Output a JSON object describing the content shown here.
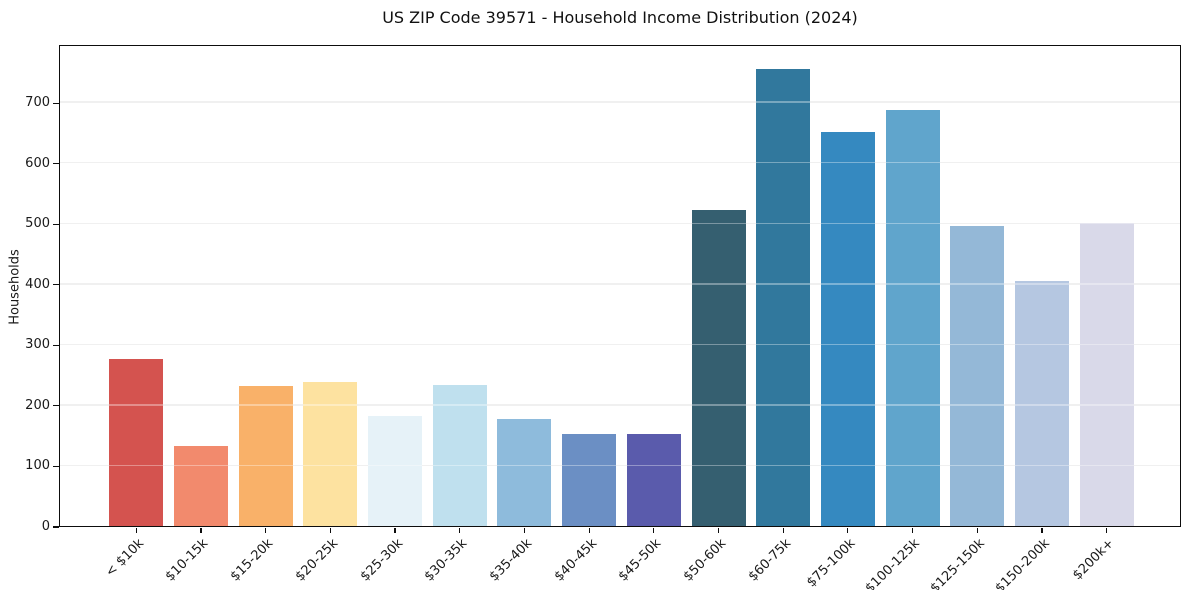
{
  "figure": {
    "title": "US ZIP Code 39571 - Household Income Distribution (2024)"
  },
  "chart_data": {
    "type": "bar",
    "title": "US ZIP Code 39571 - Household Income Distribution (2024)",
    "xlabel": "",
    "ylabel": "Households",
    "ylim": [
      0,
      796
    ],
    "yticks": [
      0,
      100,
      200,
      300,
      400,
      500,
      600,
      700
    ],
    "grid": "horizontal-only",
    "gridline_color": "#e8e8e8",
    "legend": "none",
    "background": "#ffffff",
    "categories": [
      "< $10k",
      "$10-15k",
      "$15-20k",
      "$20-25k",
      "$25-30k",
      "$30-35k",
      "$35-40k",
      "$40-45k",
      "$45-50k",
      "$50-60k",
      "$60-75k",
      "$75-100k",
      "$100-125k",
      "$125-150k",
      "$150-200k",
      "$200k+"
    ],
    "values": [
      277,
      132,
      232,
      239,
      183,
      234,
      177,
      152,
      153,
      524,
      758,
      653,
      690,
      497,
      406,
      503
    ],
    "bar_colors": [
      "#d4534f",
      "#f28a6d",
      "#f9b169",
      "#fde2a0",
      "#e6f2f8",
      "#bfe0ee",
      "#8ebbdc",
      "#6b8fc4",
      "#5a5bac",
      "#355f70",
      "#31789d",
      "#3589c0",
      "#60a5cc",
      "#94b8d7",
      "#b5c7e1",
      "#d9d9e9"
    ]
  }
}
